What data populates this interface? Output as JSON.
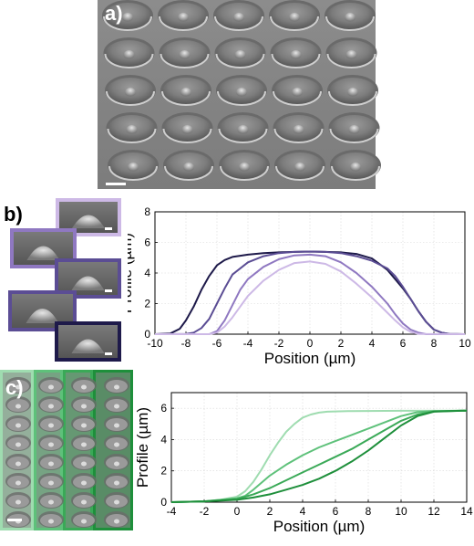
{
  "panels": {
    "a": {
      "label": "a)"
    },
    "b": {
      "label": "b)"
    },
    "c": {
      "label": "c)"
    }
  },
  "colors": {
    "purple": [
      "#1e1a4a",
      "#5b4d94",
      "#8f78c1",
      "#cdb9e6"
    ],
    "green": [
      "#1e8f3b",
      "#3aa957",
      "#5ec17a",
      "#9fdcb0"
    ],
    "sem_background": "#8a8a8a"
  },
  "chart_data": [
    {
      "type": "line",
      "panel": "b",
      "xlabel": "Position (µm)",
      "ylabel": "Profile (µm)",
      "xlim": [
        -10,
        10
      ],
      "ylim": [
        0,
        8
      ],
      "xticks": [
        -10,
        -8,
        -6,
        -4,
        -2,
        0,
        2,
        4,
        6,
        8,
        10
      ],
      "yticks": [
        0,
        2,
        4,
        6,
        8
      ],
      "grid": true,
      "series": [
        {
          "color": "#1e1a4a",
          "x": [
            -10,
            -9,
            -8.4,
            -8,
            -7.5,
            -7,
            -6.5,
            -6,
            -5.5,
            -5,
            -4,
            -3,
            -2,
            -1,
            0,
            1,
            2,
            3,
            4,
            5,
            6,
            6.5,
            7,
            7.5,
            8,
            8.5,
            9,
            10
          ],
          "y": [
            0,
            0.05,
            0.35,
            0.9,
            1.8,
            2.9,
            3.8,
            4.5,
            4.85,
            5.05,
            5.2,
            5.3,
            5.35,
            5.38,
            5.4,
            5.38,
            5.35,
            5.25,
            4.95,
            4.2,
            3.0,
            2.3,
            1.5,
            0.8,
            0.3,
            0.1,
            0.02,
            0
          ]
        },
        {
          "color": "#5b4d94",
          "x": [
            -10,
            -8,
            -7.5,
            -7,
            -6.5,
            -6,
            -5.5,
            -5,
            -4,
            -3,
            -2,
            -1,
            0,
            1,
            2,
            3,
            4,
            5,
            5.5,
            6,
            6.5,
            7,
            7.5,
            8,
            8.5,
            9,
            10
          ],
          "y": [
            0,
            0.02,
            0.1,
            0.4,
            1.0,
            2.0,
            3.0,
            3.9,
            4.7,
            5.1,
            5.3,
            5.38,
            5.4,
            5.38,
            5.3,
            5.1,
            4.8,
            4.3,
            3.8,
            3.1,
            2.3,
            1.5,
            0.8,
            0.3,
            0.1,
            0.02,
            0
          ]
        },
        {
          "color": "#8f78c1",
          "x": [
            -10,
            -6.5,
            -6,
            -5.5,
            -5,
            -4.5,
            -4,
            -3,
            -2,
            -1,
            0,
            1,
            2,
            3,
            4,
            5,
            5.5,
            6,
            6.5,
            7,
            7.5,
            10
          ],
          "y": [
            0,
            0,
            0.2,
            0.9,
            1.9,
            2.9,
            3.6,
            4.4,
            4.9,
            5.15,
            5.2,
            5.1,
            4.7,
            4.0,
            3.1,
            2.0,
            1.3,
            0.7,
            0.3,
            0.1,
            0,
            0
          ]
        },
        {
          "color": "#cdb9e6",
          "x": [
            -10,
            -6.5,
            -6,
            -5.5,
            -5,
            -4.5,
            -4,
            -3,
            -2,
            -1,
            0,
            1,
            2,
            3,
            4,
            5,
            5.5,
            6,
            6.5,
            7,
            10
          ],
          "y": [
            0,
            0,
            0.1,
            0.5,
            1.1,
            1.8,
            2.5,
            3.5,
            4.2,
            4.65,
            4.75,
            4.6,
            4.1,
            3.3,
            2.4,
            1.4,
            0.9,
            0.45,
            0.15,
            0.02,
            0
          ]
        }
      ]
    },
    {
      "type": "line",
      "panel": "c",
      "xlabel": "Position (µm)",
      "ylabel": "Profile (µm)",
      "xlim": [
        -4,
        14
      ],
      "ylim": [
        0,
        7
      ],
      "xticks": [
        -4,
        -2,
        0,
        2,
        4,
        6,
        8,
        10,
        12,
        14
      ],
      "yticks": [
        0,
        2,
        4,
        6
      ],
      "grid": true,
      "series": [
        {
          "color": "#9fdcb0",
          "x": [
            -4,
            -2,
            -1,
            0,
            0.5,
            1,
            1.5,
            2,
            2.5,
            3,
            3.5,
            4,
            4.5,
            5,
            5.5,
            6,
            7,
            8,
            10,
            14
          ],
          "y": [
            0,
            0.05,
            0.15,
            0.35,
            0.7,
            1.3,
            2.1,
            3.0,
            3.8,
            4.5,
            5.0,
            5.4,
            5.6,
            5.72,
            5.78,
            5.8,
            5.82,
            5.83,
            5.84,
            5.85
          ]
        },
        {
          "color": "#5ec17a",
          "x": [
            -4,
            -2,
            0,
            0.5,
            1,
            2,
            3,
            4,
            5,
            6,
            7,
            8,
            9,
            10,
            11,
            12,
            14
          ],
          "y": [
            0,
            0.05,
            0.25,
            0.4,
            0.8,
            1.7,
            2.4,
            3.0,
            3.5,
            3.9,
            4.3,
            4.7,
            5.1,
            5.5,
            5.75,
            5.82,
            5.85
          ]
        },
        {
          "color": "#3aa957",
          "x": [
            -4,
            -2,
            0,
            1,
            2,
            3,
            4,
            5,
            6,
            7,
            8,
            9,
            10,
            11,
            12,
            14
          ],
          "y": [
            0,
            0.05,
            0.2,
            0.5,
            0.9,
            1.4,
            1.9,
            2.4,
            2.9,
            3.4,
            4.0,
            4.6,
            5.2,
            5.6,
            5.8,
            5.85
          ]
        },
        {
          "color": "#1e8f3b",
          "x": [
            -4,
            -2,
            0,
            1,
            2,
            3,
            4,
            5,
            6,
            7,
            8,
            9,
            10,
            11,
            12,
            14
          ],
          "y": [
            0,
            0.05,
            0.15,
            0.3,
            0.5,
            0.8,
            1.1,
            1.5,
            2.0,
            2.6,
            3.3,
            4.1,
            4.9,
            5.5,
            5.78,
            5.85
          ]
        }
      ]
    }
  ]
}
